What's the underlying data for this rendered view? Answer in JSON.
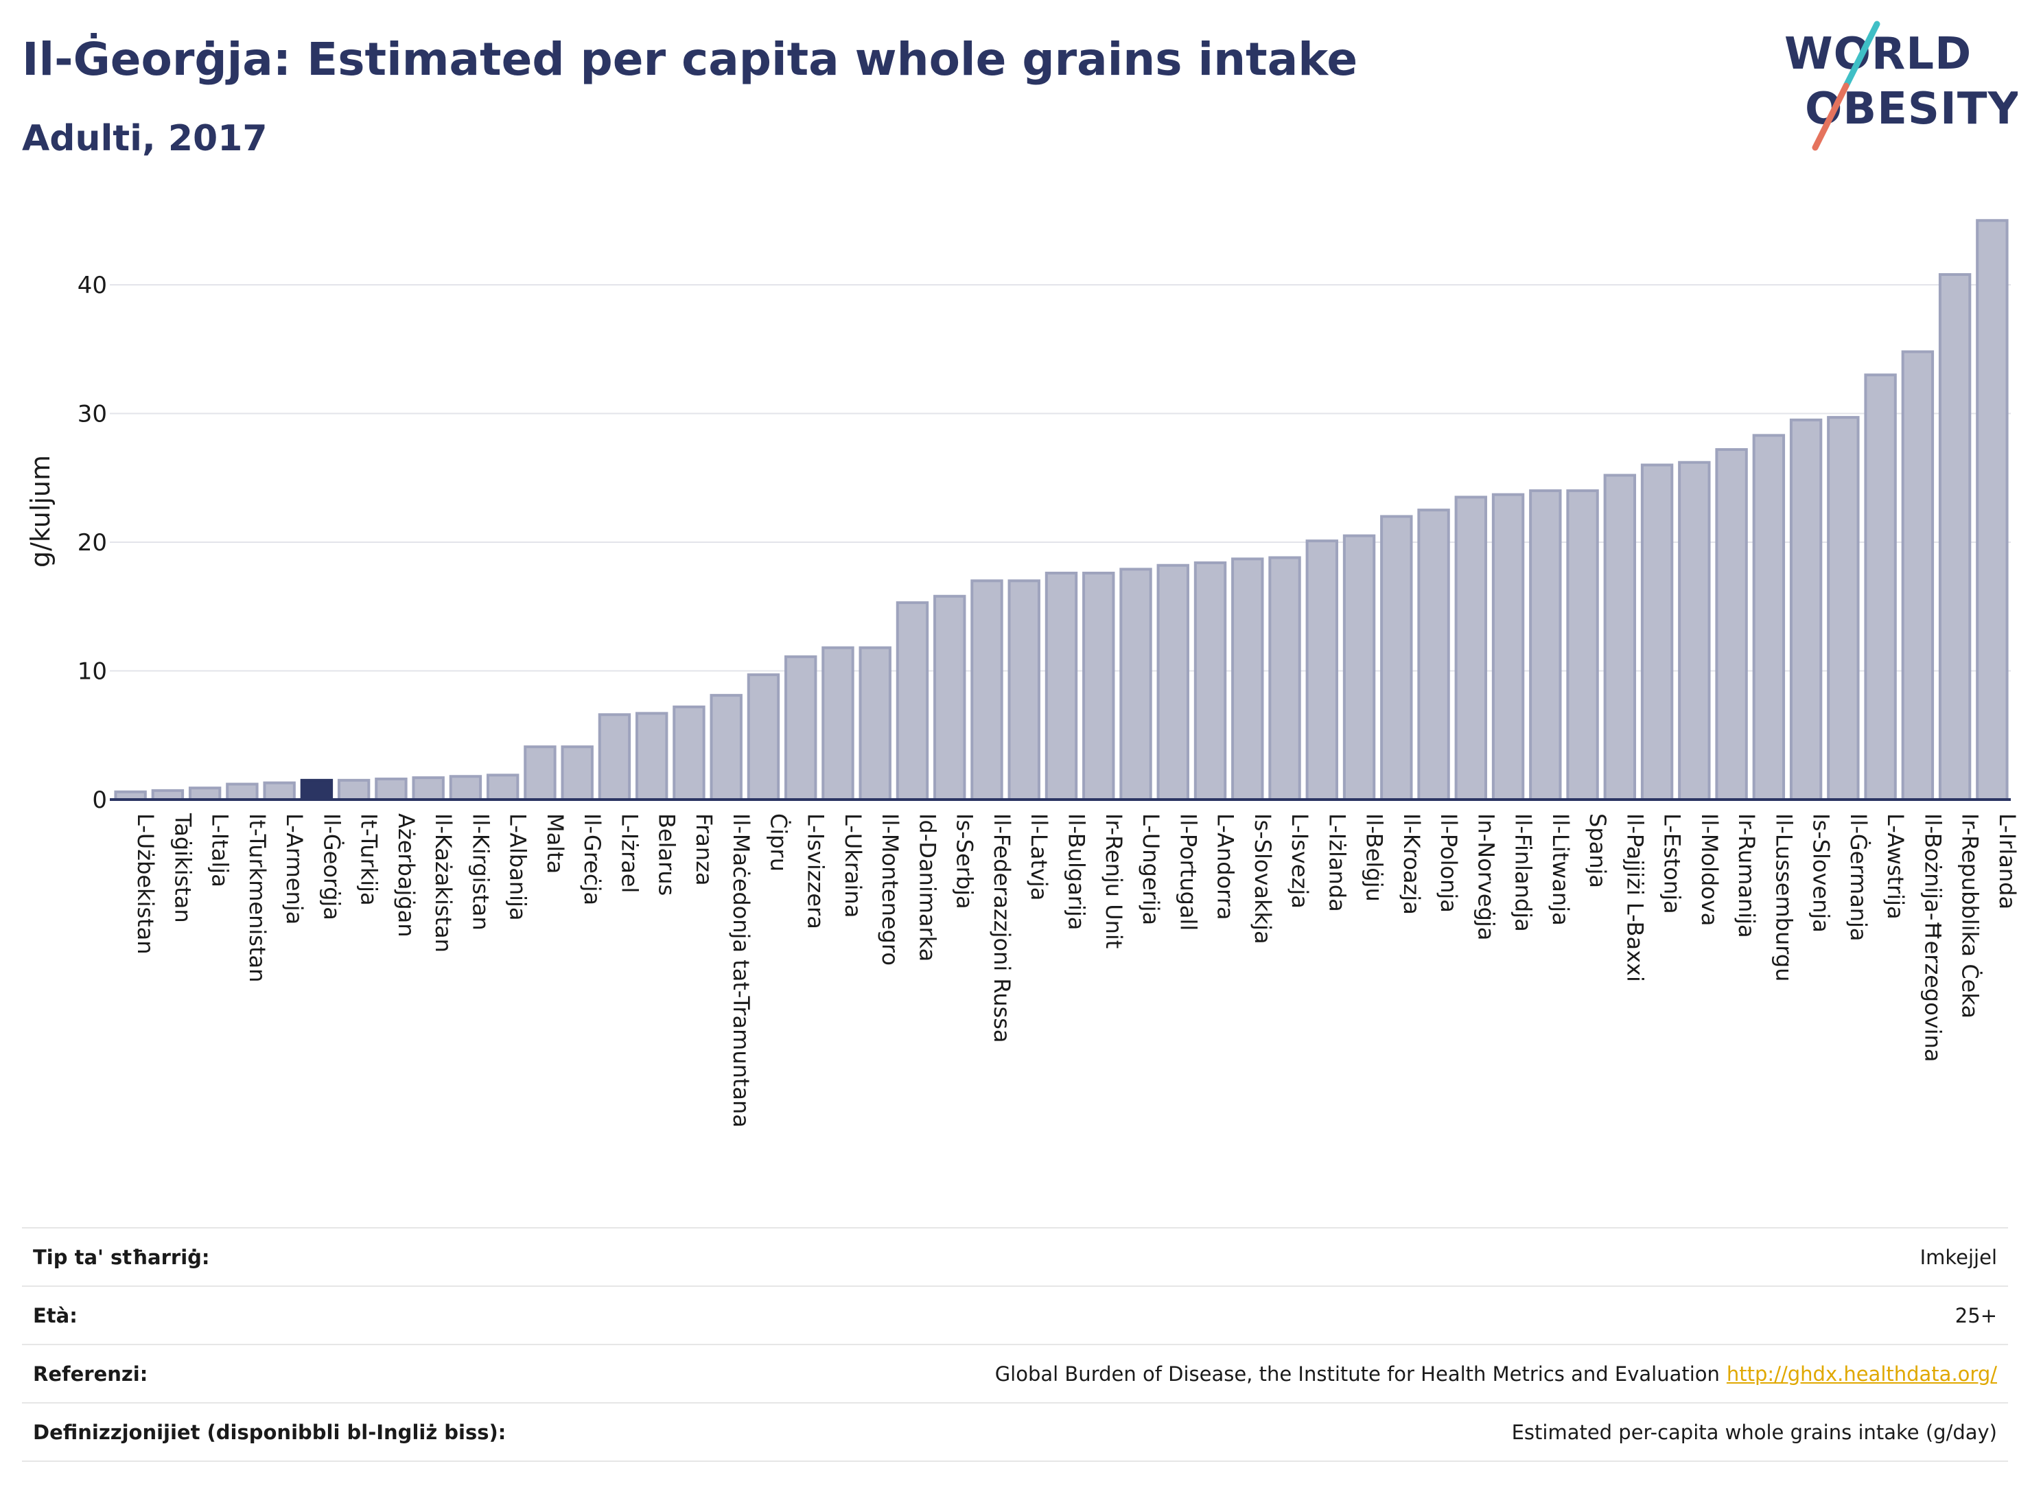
{
  "header": {
    "title": "Il-Ġeorġja: Estimated per capita whole grains intake",
    "subtitle": "Adulti, 2017"
  },
  "logo": {
    "line1": "WORLD",
    "line2": "OBESITY",
    "accent_colors": [
      "#3fbfc6",
      "#e5735d"
    ]
  },
  "colors": {
    "bar_fill": "#b9bccd",
    "bar_stroke": "#9ea3bd",
    "highlight_fill": "#2b3563",
    "text_dark": "#2b3563"
  },
  "chart_data": {
    "type": "bar",
    "ylabel": "g/kuljum",
    "xlabel": "",
    "ylim": [
      0,
      46
    ],
    "yticks": [
      0,
      10,
      20,
      30,
      40
    ],
    "grid": true,
    "highlight": "Il-Ġeorġja",
    "categories": [
      "L-Użbekistan",
      "Taġikistan",
      "L-Italja",
      "It-Turkmenistan",
      "L-Armenja",
      "Il-Ġeorġja",
      "It-Turkija",
      "Ażerbajġan",
      "Il-Każakistan",
      "Il-Kirgistan",
      "L-Albanija",
      "Malta",
      "Il-Greċja",
      "L-Iżrael",
      "Belarus",
      "Franza",
      "Il-Maċedonja tat-Tramuntana",
      "Ċipru",
      "L-Isvizzera",
      "L-Ukraina",
      "Il-Montenegro",
      "Id-Danimarka",
      "Is-Serbja",
      "Il-Federazzjoni Russa",
      "Il-Latvja",
      "Il-Bulgarija",
      "Ir-Renju Unit",
      "L-Ungerija",
      "Il-Portugall",
      "L-Andorra",
      "Is-Slovakkja",
      "L-Isvezja",
      "L-Iżlanda",
      "Il-Belġju",
      "Il-Kroazja",
      "Il-Polonja",
      "In-Norveġja",
      "Il-Finlandja",
      "Il-Litwanja",
      "Spanja",
      "Il-Pajjiżi L-Baxxi",
      "L-Estonja",
      "Il-Moldova",
      "Ir-Rumanija",
      "Il-Lussemburgu",
      "Is-Slovenja",
      "Il-Ġermanja",
      "L-Awstrija",
      "Il-Bożnija-Ħerzegovina",
      "Ir-Repubblika Ċeka",
      "L-Irlanda"
    ],
    "values": [
      0.6,
      0.7,
      0.9,
      1.2,
      1.3,
      1.5,
      1.5,
      1.6,
      1.7,
      1.8,
      1.9,
      4.1,
      4.1,
      6.6,
      6.7,
      7.2,
      8.1,
      9.7,
      11.1,
      11.8,
      11.8,
      15.3,
      15.8,
      17.0,
      17.0,
      17.6,
      17.6,
      17.9,
      18.2,
      18.4,
      18.7,
      18.8,
      20.1,
      20.5,
      22.0,
      22.5,
      23.5,
      23.7,
      24.0,
      24.0,
      25.2,
      26.0,
      26.2,
      27.2,
      28.3,
      29.5,
      29.7,
      33.0,
      34.8,
      40.8,
      45.0
    ]
  },
  "info": [
    {
      "label": "Tip ta' stħarriġ:",
      "value": "Imkejjel"
    },
    {
      "label": "Età:",
      "value": "25+"
    },
    {
      "label": "Referenzi:",
      "value": "Global Burden of Disease, the Institute for Health Metrics and Evaluation",
      "link": "http://ghdx.healthdata.org/"
    },
    {
      "label": "Definizzjonijiet (disponibbli bl-Ingliż biss):",
      "value": "Estimated per-capita whole grains intake (g/day)"
    }
  ]
}
